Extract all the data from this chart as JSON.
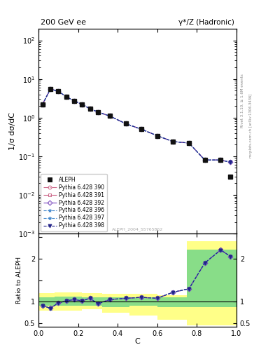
{
  "title_left": "200 GeV ee",
  "title_right": "γ*/Z (Hadronic)",
  "ylabel_main": "1/σ dσ/dC",
  "ylabel_ratio": "Ratio to ALEPH",
  "xlabel": "C",
  "rivet_label": "Rivet 3.1.10, ≥ 1.6M events",
  "mcplots_label": "mcplots.cern.ch [arXiv:1306.3436]",
  "ref_label": "ALEPH_2004_S5765862",
  "data_x": [
    0.02,
    0.06,
    0.1,
    0.14,
    0.18,
    0.22,
    0.26,
    0.3,
    0.36,
    0.44,
    0.52,
    0.6,
    0.68,
    0.76,
    0.84,
    0.92,
    0.97
  ],
  "data_y": [
    2.2,
    5.5,
    4.8,
    3.5,
    2.7,
    2.2,
    1.7,
    1.4,
    1.1,
    0.7,
    0.5,
    0.34,
    0.24,
    0.22,
    0.08,
    0.08,
    0.03
  ],
  "mc_x": [
    0.02,
    0.06,
    0.1,
    0.14,
    0.18,
    0.22,
    0.26,
    0.3,
    0.36,
    0.44,
    0.52,
    0.6,
    0.68,
    0.76,
    0.84,
    0.92,
    0.97
  ],
  "mc_y": [
    2.2,
    5.5,
    4.8,
    3.5,
    2.7,
    2.2,
    1.7,
    1.4,
    1.1,
    0.7,
    0.5,
    0.34,
    0.24,
    0.22,
    0.08,
    0.08,
    0.07
  ],
  "ratio_x": [
    0.02,
    0.06,
    0.1,
    0.14,
    0.18,
    0.22,
    0.26,
    0.3,
    0.36,
    0.44,
    0.52,
    0.6,
    0.68,
    0.76,
    0.84,
    0.92,
    0.97
  ],
  "ratio_base": [
    0.91,
    0.85,
    0.97,
    1.02,
    1.05,
    1.02,
    1.08,
    0.95,
    1.05,
    1.08,
    1.1,
    1.08,
    1.22,
    1.3,
    1.9,
    2.2,
    2.05
  ],
  "yellow_band_edges": [
    0.0,
    0.04,
    0.08,
    0.14,
    0.22,
    0.32,
    0.46,
    0.6,
    0.75,
    0.9,
    1.0
  ],
  "yellow_lo": [
    0.8,
    0.8,
    0.8,
    0.8,
    0.82,
    0.75,
    0.68,
    0.58,
    0.45,
    0.45,
    0.45
  ],
  "yellow_hi": [
    1.2,
    1.2,
    1.22,
    1.22,
    1.2,
    1.18,
    1.18,
    1.15,
    2.4,
    2.4,
    2.4
  ],
  "green_band_edges": [
    0.0,
    0.04,
    0.08,
    0.14,
    0.22,
    0.32,
    0.46,
    0.6,
    0.75,
    0.9,
    1.0
  ],
  "green_lo": [
    0.9,
    0.9,
    0.9,
    0.9,
    0.9,
    0.88,
    0.9,
    0.88,
    0.88,
    0.88,
    0.88
  ],
  "green_hi": [
    1.1,
    1.1,
    1.12,
    1.12,
    1.1,
    1.1,
    1.1,
    1.1,
    2.2,
    2.2,
    2.2
  ],
  "legend_entries": [
    {
      "label": "ALEPH",
      "color": "#111111",
      "marker": "s",
      "linestyle": "none",
      "mfc": "#111111"
    },
    {
      "label": "Pythia 6.428 390",
      "color": "#cc6688",
      "marker": "o",
      "linestyle": "-.",
      "mfc": "none"
    },
    {
      "label": "Pythia 6.428 391",
      "color": "#cc6688",
      "marker": "s",
      "linestyle": "-.",
      "mfc": "none"
    },
    {
      "label": "Pythia 6.428 392",
      "color": "#7744bb",
      "marker": "D",
      "linestyle": "-.",
      "mfc": "none"
    },
    {
      "label": "Pythia 6.428 396",
      "color": "#4488cc",
      "marker": "*",
      "linestyle": "--",
      "mfc": "none"
    },
    {
      "label": "Pythia 6.428 397",
      "color": "#4488cc",
      "marker": "*",
      "linestyle": "--",
      "mfc": "none"
    },
    {
      "label": "Pythia 6.428 398",
      "color": "#222288",
      "marker": "v",
      "linestyle": "--",
      "mfc": "#222288"
    }
  ],
  "mc_offsets": [
    0.0,
    0.008,
    -0.008,
    0.004,
    0.012,
    -0.004,
    -0.012
  ],
  "ylim_main": [
    0.001,
    200
  ],
  "ylim_ratio": [
    0.42,
    2.58
  ],
  "xlim": [
    0.0,
    1.0
  ]
}
